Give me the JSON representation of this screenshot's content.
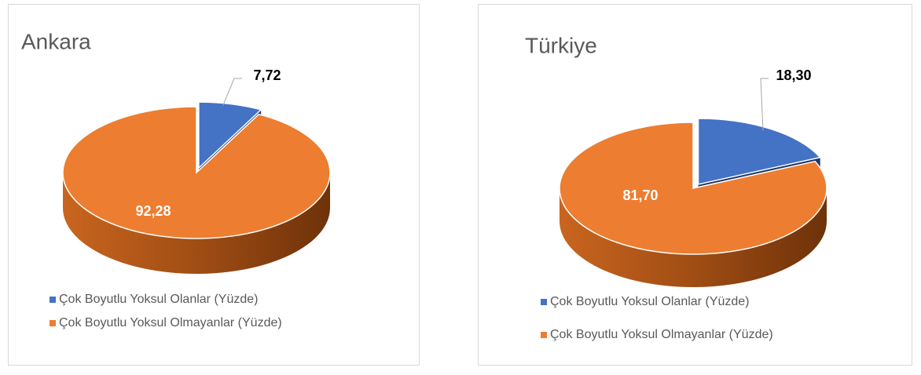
{
  "chart_data": [
    {
      "type": "pie",
      "title": "Ankara",
      "categories": [
        "Çok Boyutlu Yoksul Olanlar (Yüzde)",
        "Çok Boyutlu Yoksul Olmayanlar (Yüzde)"
      ],
      "values": [
        7.72,
        92.28
      ],
      "value_labels": [
        "7,72",
        "92,28"
      ],
      "colors": [
        "#4472c4",
        "#ed7d31"
      ]
    },
    {
      "type": "pie",
      "title": "Türkiye",
      "categories": [
        "Çok Boyutlu Yoksul Olanlar (Yüzde)",
        "Çok Boyutlu Yoksul Olmayanlar (Yüzde)"
      ],
      "values": [
        18.3,
        81.7
      ],
      "value_labels": [
        "18,30",
        "81,70"
      ],
      "colors": [
        "#4472c4",
        "#ed7d31"
      ]
    }
  ]
}
